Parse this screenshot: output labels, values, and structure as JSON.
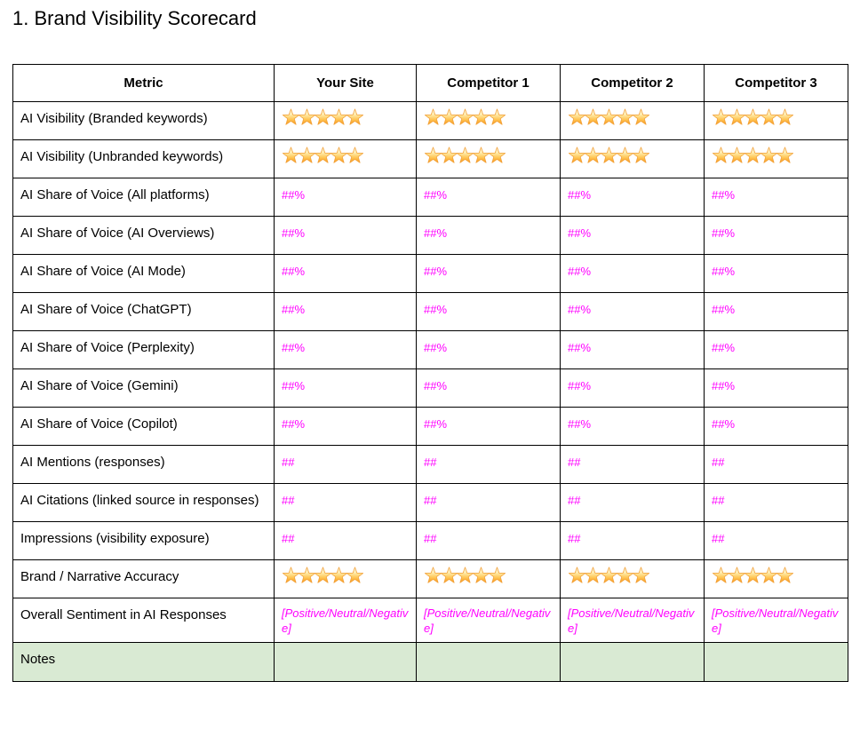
{
  "page": {
    "title": "1. Brand Visibility Scorecard"
  },
  "colors": {
    "placeholder_magenta": "#FF00FF",
    "notes_row_green": "#D9EAD3",
    "table_border": "#000000",
    "star_gold": "#F7941D"
  },
  "icons": {
    "star": "star-icon"
  },
  "table": {
    "headers": [
      "Metric",
      "Your Site",
      "Competitor 1",
      "Competitor 2",
      "Competitor 3"
    ],
    "rows": [
      {
        "metric": "AI Visibility (Branded keywords)",
        "type": "stars",
        "values": [
          5,
          5,
          5,
          5
        ]
      },
      {
        "metric": "AI Visibility (Unbranded keywords)",
        "type": "stars",
        "values": [
          5,
          5,
          5,
          5
        ]
      },
      {
        "metric": "AI Share of Voice (All platforms)",
        "type": "percent",
        "values": [
          "##%",
          "##%",
          "##%",
          "##%"
        ]
      },
      {
        "metric": "AI Share of Voice (AI Overviews)",
        "type": "percent",
        "values": [
          "##%",
          "##%",
          "##%",
          "##%"
        ]
      },
      {
        "metric": "AI Share of Voice (AI Mode)",
        "type": "percent",
        "values": [
          "##%",
          "##%",
          "##%",
          "##%"
        ]
      },
      {
        "metric": "AI Share of Voice (ChatGPT)",
        "type": "percent",
        "values": [
          "##%",
          "##%",
          "##%",
          "##%"
        ]
      },
      {
        "metric": "AI Share of Voice (Perplexity)",
        "type": "percent",
        "values": [
          "##%",
          "##%",
          "##%",
          "##%"
        ]
      },
      {
        "metric": "AI Share of Voice (Gemini)",
        "type": "percent",
        "values": [
          "##%",
          "##%",
          "##%",
          "##%"
        ]
      },
      {
        "metric": "AI Share of Voice (Copilot)",
        "type": "percent",
        "values": [
          "##%",
          "##%",
          "##%",
          "##%"
        ]
      },
      {
        "metric": "AI Mentions (responses)",
        "type": "count",
        "values": [
          "##",
          "##",
          "##",
          "##"
        ]
      },
      {
        "metric": "AI Citations (linked source in responses)",
        "type": "count",
        "values": [
          "##",
          "##",
          "##",
          "##"
        ]
      },
      {
        "metric": "Impressions (visibility exposure)",
        "type": "count",
        "values": [
          "##",
          "##",
          "##",
          "##"
        ]
      },
      {
        "metric": "Brand / Narrative Accuracy",
        "type": "stars",
        "values": [
          5,
          5,
          5,
          5
        ]
      },
      {
        "metric": "Overall Sentiment in AI Responses",
        "type": "sentiment",
        "values": [
          "[Positive/Neutral/Negative]",
          "[Positive/Neutral/Negative]",
          "[Positive/Neutral/Negative]",
          "[Positive/Neutral/Negative]"
        ]
      },
      {
        "metric": "Notes",
        "type": "notes",
        "values": [
          "",
          "",
          "",
          ""
        ]
      }
    ]
  }
}
